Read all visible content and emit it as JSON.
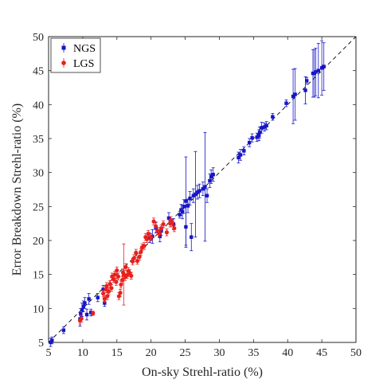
{
  "chart_data": {
    "type": "scatter",
    "xlabel": "On-sky Strehl-ratio (%)",
    "ylabel": "Error Breakdown Strehl-ratio (%)",
    "xlim": [
      5,
      50
    ],
    "ylim": [
      5,
      50
    ],
    "xticks": [
      "5",
      "10",
      "15",
      "20",
      "25",
      "30",
      "35",
      "40",
      "45",
      "50"
    ],
    "yticks": [
      "5",
      "10",
      "15",
      "20",
      "25",
      "30",
      "35",
      "40",
      "45",
      "50"
    ],
    "grid": false,
    "reference_line": "y = x (dashed)",
    "legend_position": "top-left",
    "series": [
      {
        "name": "NGS",
        "color": "#1515c8",
        "marker": "square",
        "points": [
          [
            5.3,
            5.0,
            0.6
          ],
          [
            5.5,
            5.3,
            0.5
          ],
          [
            7.2,
            6.8,
            0.5
          ],
          [
            9.6,
            8.4,
            1.0
          ],
          [
            9.7,
            9.2,
            0.8
          ],
          [
            9.9,
            9.8,
            1.0
          ],
          [
            10.1,
            10.3,
            0.8
          ],
          [
            10.3,
            10.8,
            0.8
          ],
          [
            10.6,
            9.1,
            0.8
          ],
          [
            10.9,
            11.4,
            0.8
          ],
          [
            11.2,
            9.4,
            0.5
          ],
          [
            12.2,
            11.6,
            0.6
          ],
          [
            13.0,
            12.8,
            0.6
          ],
          [
            13.2,
            10.8,
            0.5
          ],
          [
            19.8,
            20.4,
            0.7
          ],
          [
            20.2,
            20.6,
            1.0
          ],
          [
            20.7,
            21.9,
            0.8
          ],
          [
            21.3,
            20.6,
            0.8
          ],
          [
            21.5,
            21.4,
            0.6
          ],
          [
            22.6,
            23.3,
            0.8
          ],
          [
            23.3,
            22.4,
            0.8
          ],
          [
            24.2,
            23.8,
            0.5
          ],
          [
            24.4,
            24.5,
            0.8
          ],
          [
            24.6,
            24.2,
            1.0
          ],
          [
            24.8,
            25.0,
            1.0
          ],
          [
            25.1,
            22.0,
            3.0
          ],
          [
            25.1,
            25.8,
            6.5
          ],
          [
            25.4,
            25.1,
            1.0
          ],
          [
            25.7,
            26.2,
            1.0
          ],
          [
            25.9,
            20.5,
            2.0
          ],
          [
            26.2,
            26.6,
            1.0
          ],
          [
            26.5,
            26.8,
            6.3
          ],
          [
            26.8,
            27.1,
            1.0
          ],
          [
            27.1,
            27.3,
            1.0
          ],
          [
            27.6,
            27.6,
            1.0
          ],
          [
            27.9,
            27.9,
            8.0
          ],
          [
            28.2,
            26.6,
            1.0
          ],
          [
            28.6,
            28.8,
            1.0
          ],
          [
            28.8,
            29.4,
            1.0
          ],
          [
            29.1,
            29.7,
            1.0
          ],
          [
            32.8,
            32.2,
            0.8
          ],
          [
            33.1,
            32.6,
            0.8
          ],
          [
            33.6,
            33.2,
            0.6
          ],
          [
            34.4,
            34.4,
            0.6
          ],
          [
            34.8,
            35.1,
            0.6
          ],
          [
            35.5,
            35.2,
            0.6
          ],
          [
            35.8,
            35.5,
            0.8
          ],
          [
            35.9,
            35.9,
            0.8
          ],
          [
            36.2,
            36.6,
            0.8
          ],
          [
            36.6,
            36.7,
            0.6
          ],
          [
            36.9,
            36.9,
            0.6
          ],
          [
            37.8,
            38.2,
            0.5
          ],
          [
            39.8,
            40.2,
            0.5
          ],
          [
            40.8,
            41.2,
            4.0
          ],
          [
            41.1,
            41.5,
            3.8
          ],
          [
            42.6,
            42.1,
            2.0
          ],
          [
            42.8,
            43.5,
            0.5
          ],
          [
            43.7,
            44.6,
            3.5
          ],
          [
            43.9,
            44.6,
            3.5
          ],
          [
            44.1,
            44.8,
            3.5
          ],
          [
            44.5,
            45.0,
            4.0
          ],
          [
            45.0,
            45.4,
            4.0
          ],
          [
            45.3,
            45.6,
            3.5
          ]
        ]
      },
      {
        "name": "LGS",
        "color": "#e8211c",
        "marker": "circle",
        "points": [
          [
            9.6,
            8.2,
            0.5
          ],
          [
            9.8,
            8.5,
            0.5
          ],
          [
            11.5,
            9.3,
            0.3
          ],
          [
            13.0,
            12.2,
            0.5
          ],
          [
            13.2,
            11.4,
            0.5
          ],
          [
            13.4,
            12.8,
            0.5
          ],
          [
            13.5,
            13.3,
            0.5
          ],
          [
            13.6,
            11.8,
            0.5
          ],
          [
            13.8,
            12.5,
            0.5
          ],
          [
            14.0,
            13.6,
            0.5
          ],
          [
            14.2,
            13.0,
            0.5
          ],
          [
            14.3,
            14.7,
            0.5
          ],
          [
            14.5,
            14.3,
            0.5
          ],
          [
            14.7,
            15.0,
            0.5
          ],
          [
            14.9,
            13.9,
            0.5
          ],
          [
            15.0,
            15.6,
            0.5
          ],
          [
            15.2,
            14.7,
            0.5
          ],
          [
            15.3,
            11.8,
            0.5
          ],
          [
            15.5,
            12.3,
            0.5
          ],
          [
            15.6,
            13.5,
            0.5
          ],
          [
            15.8,
            14.2,
            0.5
          ],
          [
            15.9,
            15.3,
            0.5
          ],
          [
            16.0,
            15.0,
            4.5
          ],
          [
            16.2,
            14.6,
            0.5
          ],
          [
            16.3,
            16.1,
            0.5
          ],
          [
            16.5,
            14.9,
            0.5
          ],
          [
            16.7,
            15.5,
            0.5
          ],
          [
            16.9,
            15.2,
            0.5
          ],
          [
            17.1,
            14.8,
            0.5
          ],
          [
            17.3,
            16.9,
            0.5
          ],
          [
            17.5,
            17.4,
            0.5
          ],
          [
            17.8,
            18.2,
            0.5
          ],
          [
            18.0,
            17.0,
            0.5
          ],
          [
            18.3,
            17.6,
            0.5
          ],
          [
            18.5,
            18.3,
            0.5
          ],
          [
            18.7,
            19.0,
            0.5
          ],
          [
            19.0,
            19.2,
            0.5
          ],
          [
            19.2,
            20.5,
            0.5
          ],
          [
            19.4,
            20.2,
            0.5
          ],
          [
            19.6,
            21.0,
            0.5
          ],
          [
            20.0,
            20.5,
            0.5
          ],
          [
            20.4,
            22.8,
            0.5
          ],
          [
            20.7,
            22.1,
            0.5
          ],
          [
            21.0,
            21.4,
            0.5
          ],
          [
            21.2,
            21.0,
            0.5
          ],
          [
            21.5,
            21.8,
            0.5
          ],
          [
            21.8,
            22.4,
            0.5
          ],
          [
            22.3,
            21.2,
            0.5
          ],
          [
            22.8,
            22.5,
            0.5
          ],
          [
            22.9,
            23.0,
            0.5
          ],
          [
            23.1,
            22.6,
            0.5
          ],
          [
            23.4,
            21.8,
            0.5
          ]
        ]
      }
    ]
  }
}
